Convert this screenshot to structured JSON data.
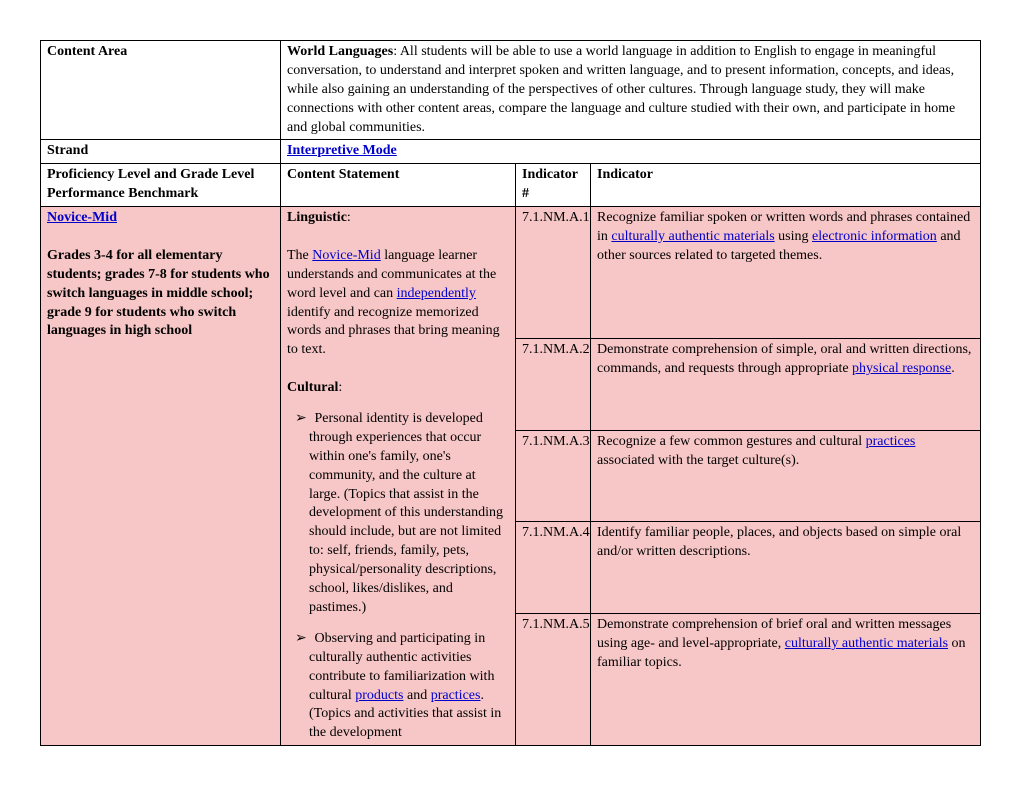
{
  "row1": {
    "label": "Content Area",
    "value_bold": "World Languages",
    "value_rest": ":  All students will be able to use a world language in addition to English to engage in meaningful conversation, to understand and interpret spoken and written language, and to present information, concepts, and ideas, while also gaining an understanding of the perspectives of other cultures. Through language study, they will make connections with other content areas, compare the language and culture studied with their own, and participate in home and global communities."
  },
  "row2": {
    "label": "Strand",
    "link": "Interpretive Mode"
  },
  "row3": {
    "c1": "Proficiency Level and Grade Level Performance Benchmark",
    "c2": "Content Statement",
    "c3": "Indicator #",
    "c4": "Indicator"
  },
  "novice": {
    "link": "Novice-Mid",
    "grades": "Grades 3-4 for all elementary students; grades 7-8 for students who switch languages in middle school; grade 9 for students who switch languages in high school"
  },
  "content": {
    "ling_label": "Linguistic",
    "ling_p1a": "The ",
    "ling_link1": "Novice-Mid",
    "ling_p1b": " language learner understands and communicates at the word level and can ",
    "ling_link2": "independently",
    "ling_p1c": " identify and recognize memorized words and phrases that bring meaning to text.",
    "cult_label": "Cultural",
    "bullet1": "Personal identity is developed through experiences that occur within one's family, one's community, and the culture at large. (Topics that assist in the development of this understanding should include, but are not limited to: self, friends, family, pets, physical/personality descriptions, school, likes/dislikes, and pastimes.)",
    "bullet2a": "Observing and participating in culturally authentic activities contribute to familiarization with cultural ",
    "bullet2_link1": "products",
    "bullet2b": " and ",
    "bullet2_link2": "practices",
    "bullet2c": ". (Topics and activities that assist in the development"
  },
  "ind": {
    "i1_num": "7.1.NM.A.1",
    "i1_a": "Recognize familiar spoken or written words and phrases contained in ",
    "i1_link1": "culturally authentic materials",
    "i1_b": " using ",
    "i1_link2": "electronic information",
    "i1_c": " and other sources related to targeted themes.",
    "i2_num": "7.1.NM.A.2",
    "i2_a": "Demonstrate comprehension of simple, oral and written directions, commands, and requests through appropriate ",
    "i2_link": "physical response",
    "i2_b": ".",
    "i3_num": "7.1.NM.A.3",
    "i3_a": "Recognize a few common gestures and cultural ",
    "i3_link": "practices",
    "i3_b": " associated with the target culture(s).",
    "i4_num": "7.1.NM.A.4",
    "i4": "Identify familiar people, places, and objects based on simple oral and/or written descriptions.",
    "i5_num": "7.1.NM.A.5",
    "i5_a": "Demonstrate comprehension of brief oral and written messages using age- and level-appropriate, ",
    "i5_link": "culturally authentic materials",
    "i5_b": " on familiar topics."
  }
}
